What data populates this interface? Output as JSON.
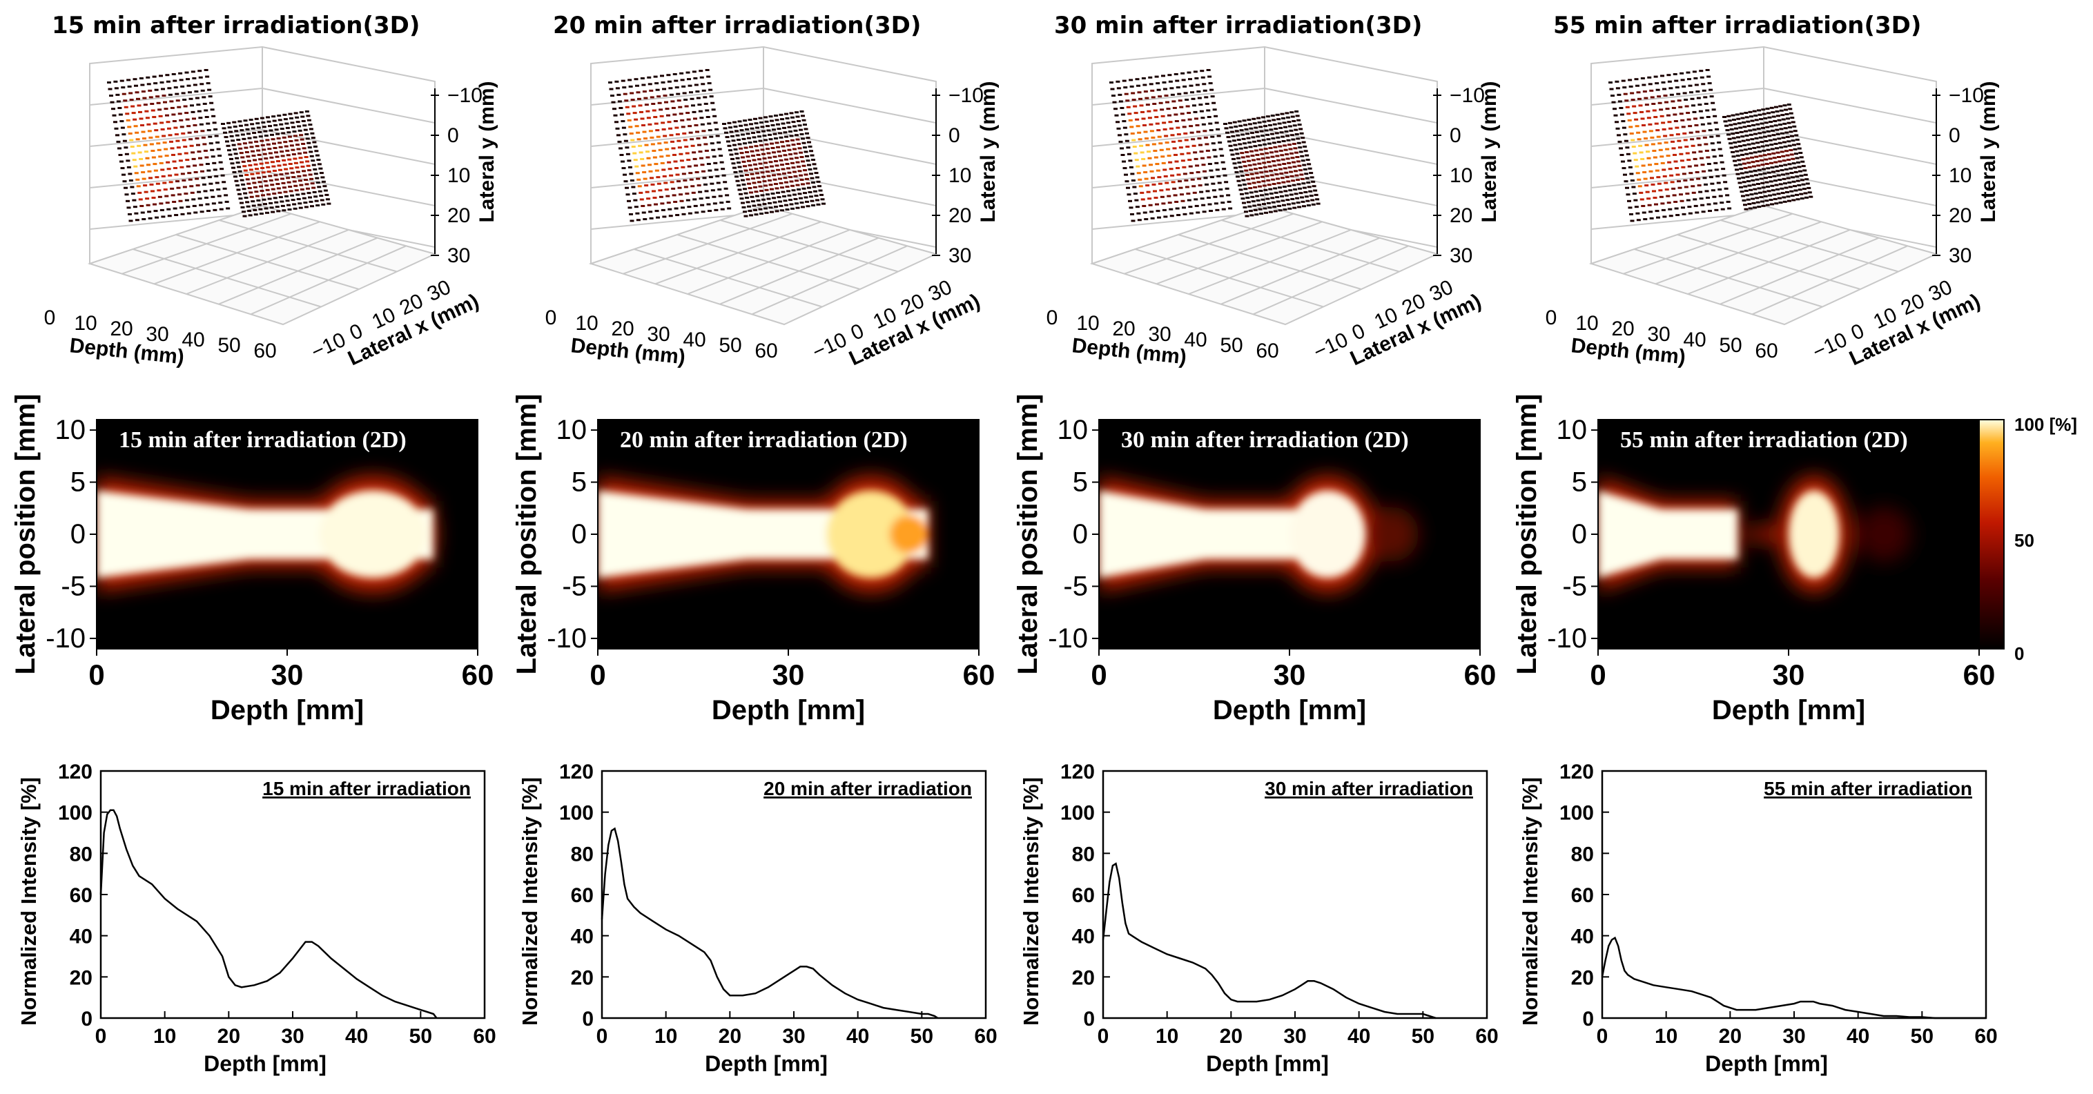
{
  "figure": {
    "colorbar": {
      "ticks": [
        "100 [%]",
        "50",
        "0"
      ]
    },
    "row3d": {
      "xlabel": "Depth (mm)",
      "ylabel": "Lateral x (mm)",
      "zlabel": "Lateral y (mm)",
      "depth_ticks": [
        "0",
        "10",
        "20",
        "30",
        "40",
        "50",
        "60"
      ],
      "x_ticks": [
        "−10",
        "0",
        "10",
        "20",
        "30"
      ],
      "z_ticks": [
        "−10",
        "0",
        "10",
        "20",
        "30"
      ]
    },
    "row2d": {
      "xlabel": "Depth [mm]",
      "ylabel": "Lateral position [mm]",
      "x_ticks": [
        "0",
        "30",
        "60"
      ],
      "y_ticks": [
        "10",
        "5",
        "0",
        "-5",
        "-10"
      ]
    },
    "row1d": {
      "xlabel": "Depth [mm]",
      "ylabel": "Normalized Intensity [%]",
      "x_ticks": [
        "0",
        "10",
        "20",
        "30",
        "40",
        "50",
        "60"
      ],
      "y_ticks": [
        "0",
        "20",
        "40",
        "60",
        "80",
        "100",
        "120"
      ]
    }
  },
  "panels": [
    {
      "title3d": "15 min after irradiation(3D)",
      "title2d": "15 min after irradiation (2D)",
      "title1d": "15 min after irradiation"
    },
    {
      "title3d": "20 min after irradiation(3D)",
      "title2d": "20 min after irradiation (2D)",
      "title1d": "20 min after irradiation"
    },
    {
      "title3d": "30 min after irradiation(3D)",
      "title2d": "30 min after irradiation (2D)",
      "title1d": "30 min after irradiation"
    },
    {
      "title3d": "55 min after irradiation(3D)",
      "title2d": "55 min after irradiation (2D)",
      "title1d": "55 min after irradiation"
    }
  ],
  "chart_data": [
    {
      "type": "line",
      "title": "15 min after irradiation",
      "xlabel": "Depth [mm]",
      "ylabel": "Normalized Intensity [%]",
      "xlim": [
        0,
        60
      ],
      "ylim": [
        0,
        120
      ],
      "x": [
        0,
        0.5,
        1,
        1.5,
        2,
        2.5,
        3,
        4,
        5,
        6,
        8,
        10,
        12,
        14,
        15,
        17,
        19,
        20,
        21,
        22,
        24,
        26,
        28,
        30,
        31,
        32,
        33,
        34,
        36,
        38,
        40,
        42,
        44,
        46,
        48,
        50,
        51,
        52,
        52.5
      ],
      "y": [
        60,
        90,
        99,
        101,
        101,
        98,
        92,
        82,
        74,
        69,
        65,
        58,
        53,
        49,
        47,
        40,
        30,
        20,
        16,
        15,
        16,
        18,
        22,
        29,
        33,
        37,
        37,
        35,
        29,
        24,
        19,
        15,
        11,
        8,
        6,
        4,
        3,
        2,
        0
      ]
    },
    {
      "type": "line",
      "title": "20 min after irradiation",
      "xlabel": "Depth [mm]",
      "ylabel": "Normalized Intensity [%]",
      "xlim": [
        0,
        60
      ],
      "ylim": [
        0,
        120
      ],
      "x": [
        0,
        0.5,
        1,
        1.5,
        2,
        2.5,
        3,
        3.5,
        4,
        5,
        6,
        8,
        10,
        12,
        14,
        16,
        17,
        18,
        19,
        20,
        21,
        22,
        24,
        26,
        28,
        30,
        31,
        32,
        33,
        34,
        36,
        38,
        40,
        42,
        44,
        46,
        48,
        50,
        51,
        52,
        52.5
      ],
      "y": [
        48,
        70,
        84,
        91,
        92,
        86,
        76,
        65,
        58,
        54,
        51,
        47,
        43,
        40,
        36,
        32,
        28,
        20,
        14,
        11,
        11,
        11,
        12,
        15,
        19,
        23,
        25,
        25,
        24,
        21,
        16,
        12,
        9,
        7,
        5,
        4,
        3,
        2,
        2,
        1,
        0
      ]
    },
    {
      "type": "line",
      "title": "30 min after irradiation",
      "xlabel": "Depth [mm]",
      "ylabel": "Normalized Intensity [%]",
      "xlim": [
        0,
        60
      ],
      "ylim": [
        0,
        120
      ],
      "x": [
        0,
        0.5,
        1,
        1.5,
        2,
        2.5,
        3,
        3.5,
        4,
        5,
        6,
        8,
        10,
        12,
        14,
        16,
        17,
        18,
        19,
        20,
        21,
        22,
        24,
        26,
        28,
        30,
        31,
        32,
        33,
        34,
        36,
        38,
        40,
        42,
        44,
        46,
        48,
        50,
        51,
        52
      ],
      "y": [
        38,
        52,
        66,
        74,
        75,
        68,
        56,
        46,
        41,
        39,
        37,
        34,
        31,
        29,
        27,
        24,
        21,
        17,
        12,
        9,
        8,
        8,
        8,
        9,
        11,
        14,
        16,
        18,
        18,
        17,
        14,
        10,
        7,
        5,
        3,
        2,
        2,
        2,
        1,
        0
      ]
    },
    {
      "type": "line",
      "title": "55 min after irradiation",
      "xlabel": "Depth [mm]",
      "ylabel": "Normalized Intensity [%]",
      "xlim": [
        0,
        60
      ],
      "ylim": [
        0,
        120
      ],
      "x": [
        0,
        0.5,
        1,
        1.5,
        2,
        2.5,
        3,
        3.5,
        4,
        5,
        6,
        8,
        10,
        12,
        14,
        16,
        17,
        18,
        19,
        20,
        21,
        22,
        24,
        26,
        28,
        30,
        31,
        32,
        33,
        34,
        36,
        38,
        40,
        42,
        44,
        46,
        48,
        50,
        52,
        54,
        56,
        58,
        60
      ],
      "y": [
        20,
        28,
        35,
        38,
        39,
        35,
        28,
        23,
        21,
        19,
        18,
        16,
        15,
        14,
        13,
        11,
        10,
        8,
        6,
        5,
        4,
        4,
        4,
        5,
        6,
        7,
        8,
        8,
        8,
        7,
        6,
        4,
        3,
        2,
        1,
        1,
        0.5,
        0.5,
        0,
        0,
        0,
        0,
        0
      ]
    }
  ]
}
